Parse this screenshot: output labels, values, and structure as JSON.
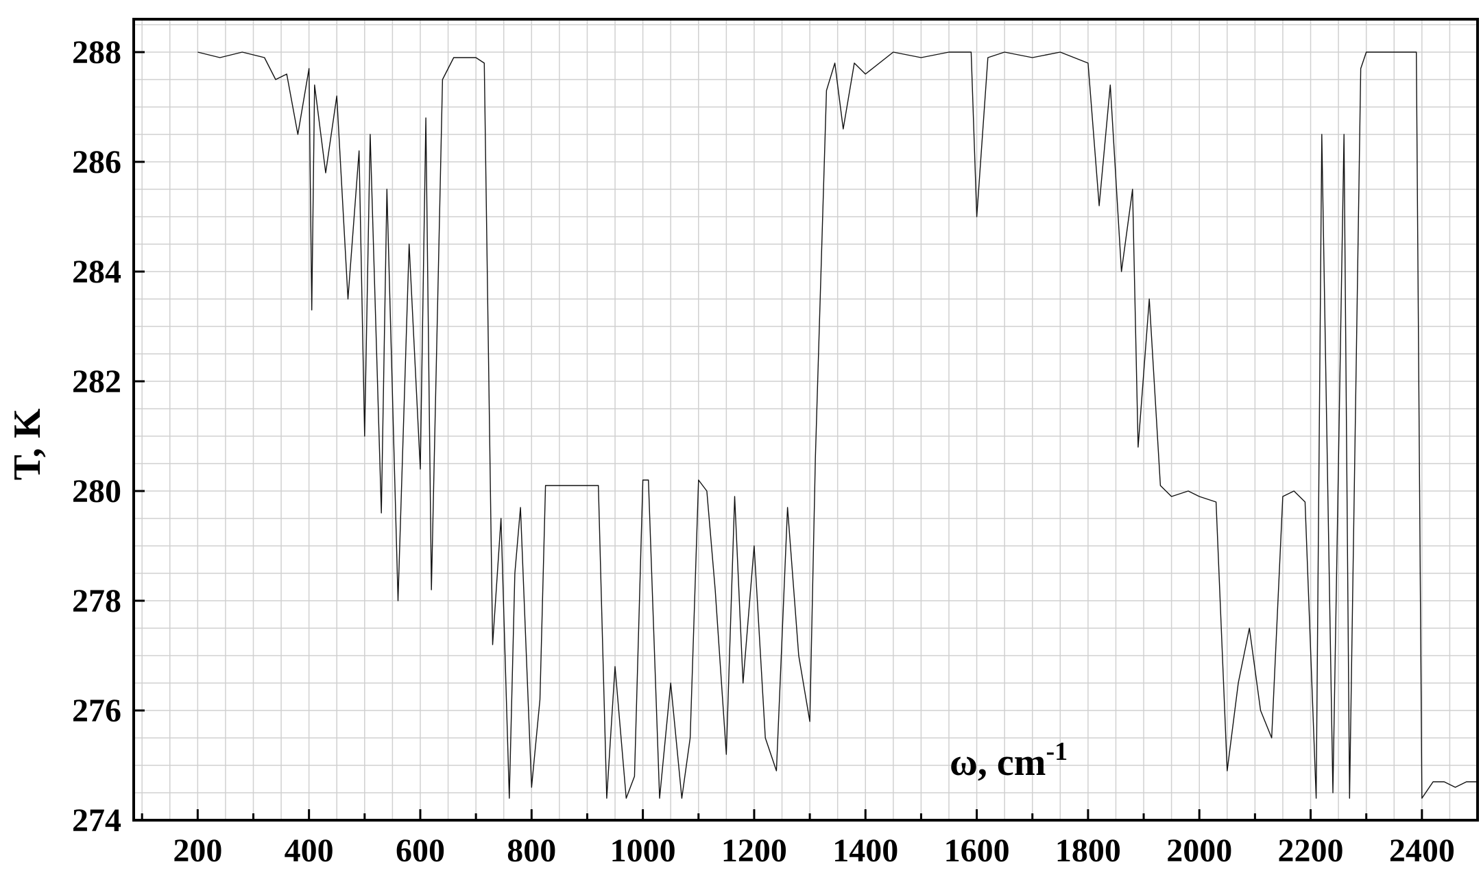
{
  "chart_data": {
    "type": "line",
    "title": "",
    "xlabel": "ω, cm",
    "xlabel_sup": "-1",
    "ylabel": "T, K",
    "xlim": [
      85,
      2500
    ],
    "ylim": [
      274,
      288.6
    ],
    "x_ticks": [
      200,
      400,
      600,
      800,
      1000,
      1200,
      1400,
      1600,
      1800,
      2000,
      2200,
      2400
    ],
    "x_tick_labels": [
      "200",
      "400",
      "600",
      "800",
      "1000",
      "1200",
      "1400",
      "1600",
      "1800",
      "2000",
      "2200",
      "2400"
    ],
    "y_ticks": [
      274,
      276,
      278,
      280,
      282,
      284,
      286,
      288
    ],
    "y_tick_labels": [
      "274",
      "276",
      "278",
      "280",
      "282",
      "284",
      "286",
      "288"
    ],
    "grid": true,
    "series": [
      {
        "x": [
          200,
          240,
          280,
          320,
          340,
          360,
          380,
          400,
          405,
          410,
          430,
          450,
          470,
          490,
          500,
          510,
          530,
          540,
          560,
          580,
          600,
          610,
          620,
          640,
          660,
          680,
          700,
          715,
          730,
          745,
          760,
          770,
          780,
          800,
          815,
          825,
          840,
          880,
          900,
          920,
          935,
          950,
          970,
          985,
          1000,
          1010,
          1030,
          1050,
          1070,
          1085,
          1100,
          1115,
          1130,
          1150,
          1165,
          1180,
          1200,
          1220,
          1240,
          1260,
          1280,
          1300,
          1310,
          1330,
          1345,
          1360,
          1380,
          1400,
          1450,
          1500,
          1550,
          1590,
          1600,
          1620,
          1650,
          1700,
          1750,
          1800,
          1820,
          1840,
          1860,
          1880,
          1890,
          1910,
          1930,
          1950,
          1980,
          2000,
          2030,
          2050,
          2070,
          2090,
          2110,
          2130,
          2150,
          2170,
          2190,
          2210,
          2220,
          2240,
          2260,
          2270,
          2290,
          2300,
          2320,
          2350,
          2380,
          2390,
          2400,
          2420,
          2440,
          2460,
          2480,
          2500
        ],
        "y": [
          288,
          287.9,
          288,
          287.9,
          287.5,
          287.6,
          286.5,
          287.7,
          283.3,
          287.4,
          285.8,
          287.2,
          283.5,
          286.2,
          281,
          286.5,
          279.6,
          285.5,
          278,
          284.5,
          280.4,
          286.8,
          278.2,
          287.5,
          287.9,
          287.9,
          287.9,
          287.8,
          277.2,
          279.5,
          274.4,
          278.5,
          279.7,
          274.6,
          276.2,
          280.1,
          280.1,
          280.1,
          280.1,
          280.1,
          274.4,
          276.8,
          274.4,
          274.8,
          280.2,
          280.2,
          274.4,
          276.5,
          274.4,
          275.5,
          280.2,
          280,
          278.2,
          275.2,
          279.9,
          276.5,
          279,
          275.5,
          274.9,
          279.7,
          277,
          275.8,
          280.6,
          287.3,
          287.8,
          286.6,
          287.8,
          287.6,
          288,
          287.9,
          288,
          288,
          285,
          287.9,
          288,
          287.9,
          288,
          287.8,
          285.2,
          287.4,
          284,
          285.5,
          280.8,
          283.5,
          280.1,
          279.9,
          280,
          279.9,
          279.8,
          274.9,
          276.5,
          277.5,
          276,
          275.5,
          279.9,
          280,
          279.8,
          274.4,
          286.5,
          274.5,
          286.5,
          274.4,
          287.7,
          288,
          288,
          288,
          288,
          288,
          274.4,
          274.7,
          274.7,
          274.6,
          274.7,
          274.7
        ]
      }
    ]
  }
}
